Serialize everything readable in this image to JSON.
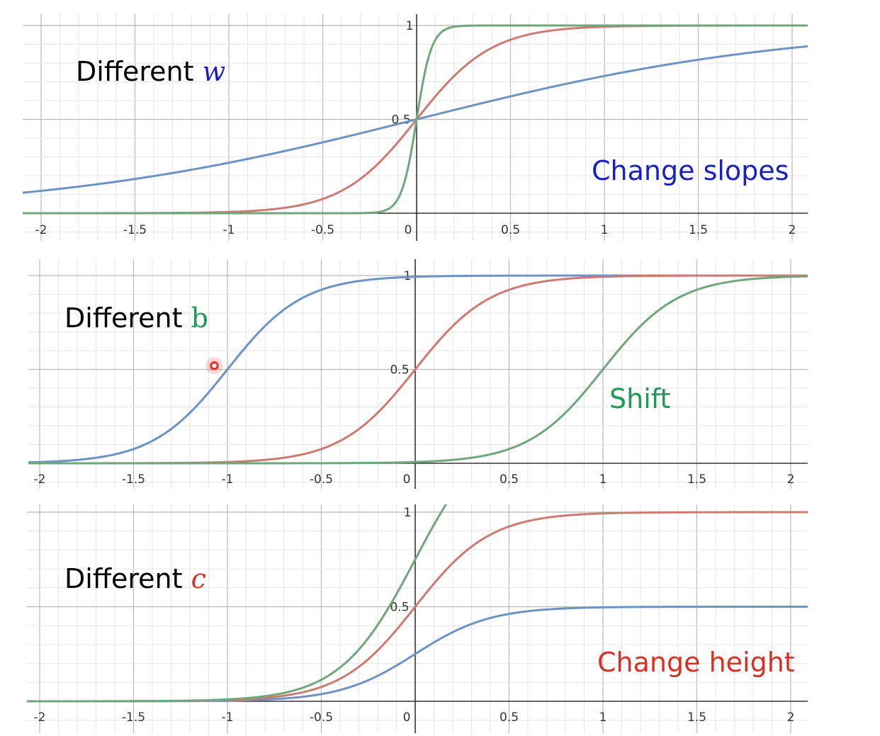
{
  "chart_data": [
    {
      "type": "line",
      "title": "Different w",
      "title_prefix": "Different",
      "title_var": "w",
      "title_var_color": "#1a1fbf",
      "annotation": "Change slopes",
      "annotation_color": "#1a1fbf",
      "xlim": [
        -2.1,
        2.1
      ],
      "ylim": [
        0,
        1
      ],
      "x_ticks": [
        "-2",
        "-1.5",
        "-1",
        "-0.5",
        "0",
        "0.5",
        "1",
        "1.5",
        "2"
      ],
      "y_ticks": [
        "0.5",
        "1"
      ],
      "grid": true,
      "series": [
        {
          "color": "#6c93c4",
          "function": "sigmoid",
          "w": 1,
          "b": 0,
          "c": 1
        },
        {
          "color": "#cd7a72",
          "function": "sigmoid",
          "w": 5,
          "b": 0,
          "c": 1
        },
        {
          "color": "#6fa77a",
          "function": "sigmoid",
          "w": 25,
          "b": 0,
          "c": 1
        }
      ]
    },
    {
      "type": "line",
      "title": "Different b",
      "title_prefix": "Different",
      "title_var": "b",
      "title_var_color": "#1e9a55",
      "annotation": "Shift",
      "annotation_color": "#1e9a55",
      "xlim": [
        -2.1,
        2.1
      ],
      "ylim": [
        0,
        1
      ],
      "x_ticks": [
        "-2",
        "-1.5",
        "-1",
        "-0.5",
        "0",
        "0.5",
        "1",
        "1.5",
        "2"
      ],
      "y_ticks": [
        "0.5",
        "1"
      ],
      "grid": true,
      "series": [
        {
          "color": "#6c93c4",
          "function": "sigmoid",
          "w": 5,
          "b": 5,
          "c": 1
        },
        {
          "color": "#cd7a72",
          "function": "sigmoid",
          "w": 5,
          "b": 0,
          "c": 1
        },
        {
          "color": "#6fa77a",
          "function": "sigmoid",
          "w": 5,
          "b": -5,
          "c": 1
        }
      ],
      "cursor_marker": {
        "x": -1.07,
        "y": 0.52,
        "color": "#e8262a"
      }
    },
    {
      "type": "line",
      "title": "Different c",
      "title_prefix": "Different",
      "title_var": "c",
      "title_var_color": "#d93025",
      "annotation": "Change height",
      "annotation_color": "#d93025",
      "xlim": [
        -2.1,
        2.1
      ],
      "ylim": [
        0,
        1
      ],
      "x_ticks": [
        "-2",
        "-1.5",
        "-1",
        "-0.5",
        "0",
        "0.5",
        "1",
        "1.5",
        "2"
      ],
      "y_ticks": [
        "0.5",
        "1"
      ],
      "grid": true,
      "series": [
        {
          "color": "#6c93c4",
          "function": "sigmoid",
          "w": 5,
          "b": 0,
          "c": 0.5
        },
        {
          "color": "#cd7a72",
          "function": "sigmoid",
          "w": 5,
          "b": 0,
          "c": 1
        },
        {
          "color": "#6fa77a",
          "function": "sigmoid",
          "w": 5,
          "b": 0,
          "c": 1.5
        }
      ]
    }
  ]
}
